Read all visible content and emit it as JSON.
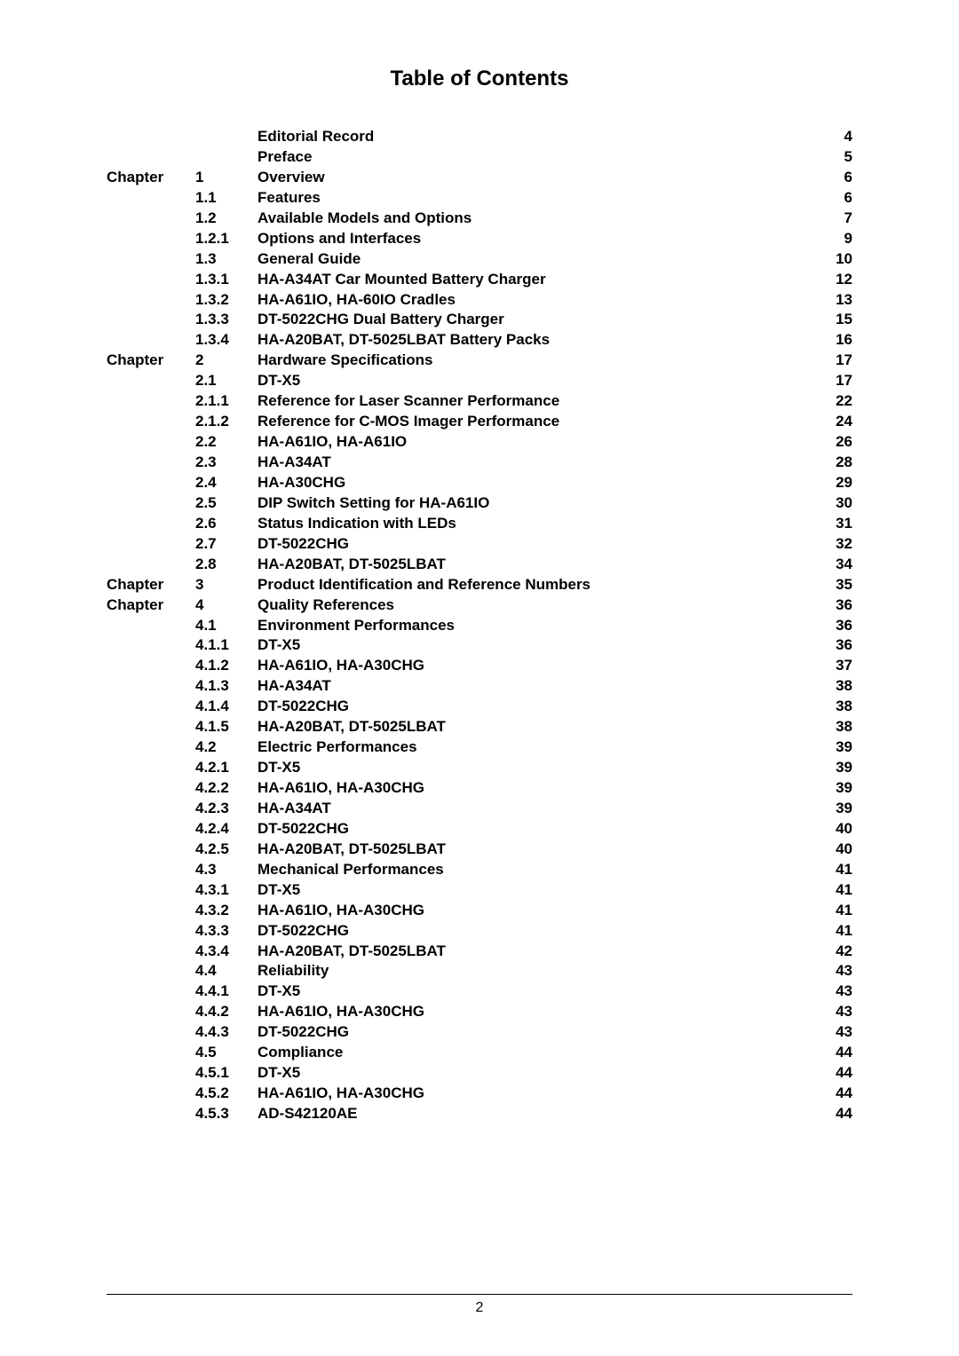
{
  "title": "Table of Contents",
  "footer_page": "2",
  "toc": [
    {
      "chapter": "",
      "num": "",
      "title": "Editorial Record",
      "page": "4"
    },
    {
      "chapter": "",
      "num": "",
      "title": "Preface",
      "page": "5"
    },
    {
      "chapter": "Chapter",
      "num": "1",
      "title": "Overview",
      "page": "6"
    },
    {
      "chapter": "",
      "num": "1.1",
      "title": "Features",
      "page": "6"
    },
    {
      "chapter": "",
      "num": "1.2",
      "title": "Available Models and Options",
      "page": "7"
    },
    {
      "chapter": "",
      "num": "1.2.1",
      "title": "Options and Interfaces",
      "page": "9"
    },
    {
      "chapter": "",
      "num": "1.3",
      "title": "General Guide",
      "page": "10"
    },
    {
      "chapter": "",
      "num": "1.3.1",
      "title": "HA-A34AT Car Mounted Battery Charger",
      "page": "12"
    },
    {
      "chapter": "",
      "num": "1.3.2",
      "title": "HA-A61IO, HA-60IO Cradles",
      "page": "13"
    },
    {
      "chapter": "",
      "num": "1.3.3",
      "title": "DT-5022CHG Dual Battery Charger",
      "page": "15"
    },
    {
      "chapter": "",
      "num": "1.3.4",
      "title": "HA-A20BAT, DT-5025LBAT Battery Packs",
      "page": "16"
    },
    {
      "chapter": "Chapter",
      "num": "2",
      "title": "Hardware Specifications",
      "page": "17"
    },
    {
      "chapter": "",
      "num": "2.1",
      "title": "DT-X5",
      "page": "17"
    },
    {
      "chapter": "",
      "num": "2.1.1",
      "title": "Reference for Laser Scanner Performance",
      "page": "22"
    },
    {
      "chapter": "",
      "num": "2.1.2",
      "title": "Reference for C-MOS Imager Performance",
      "page": "24"
    },
    {
      "chapter": "",
      "num": "2.2",
      "title": "HA-A61IO, HA-A61IO",
      "page": "26"
    },
    {
      "chapter": "",
      "num": "2.3",
      "title": "HA-A34AT",
      "page": "28"
    },
    {
      "chapter": "",
      "num": "2.4",
      "title": "HA-A30CHG",
      "page": "29"
    },
    {
      "chapter": "",
      "num": "2.5",
      "title": "DIP Switch Setting for HA-A61IO",
      "page": "30"
    },
    {
      "chapter": "",
      "num": "2.6",
      "title": "Status Indication with LEDs",
      "page": "31"
    },
    {
      "chapter": "",
      "num": "2.7",
      "title": "DT-5022CHG",
      "page": "32"
    },
    {
      "chapter": "",
      "num": "2.8",
      "title": "HA-A20BAT, DT-5025LBAT",
      "page": "34"
    },
    {
      "chapter": "Chapter",
      "num": "3",
      "title": "Product Identification and Reference Numbers",
      "page": "35"
    },
    {
      "chapter": "Chapter",
      "num": "4",
      "title": "Quality References",
      "page": "36"
    },
    {
      "chapter": "",
      "num": "4.1",
      "title": "Environment Performances",
      "page": "36"
    },
    {
      "chapter": "",
      "num": "4.1.1",
      "title": "DT-X5",
      "page": "36"
    },
    {
      "chapter": "",
      "num": "4.1.2",
      "title": "HA-A61IO, HA-A30CHG",
      "page": "37"
    },
    {
      "chapter": "",
      "num": "4.1.3",
      "title": "HA-A34AT",
      "page": "38"
    },
    {
      "chapter": "",
      "num": "4.1.4",
      "title": "DT-5022CHG",
      "page": "38"
    },
    {
      "chapter": "",
      "num": "4.1.5",
      "title": "HA-A20BAT, DT-5025LBAT",
      "page": "38"
    },
    {
      "chapter": "",
      "num": "4.2",
      "title": "Electric Performances",
      "page": "39"
    },
    {
      "chapter": "",
      "num": "4.2.1",
      "title": "DT-X5",
      "page": "39"
    },
    {
      "chapter": "",
      "num": "4.2.2",
      "title": "HA-A61IO, HA-A30CHG",
      "page": "39"
    },
    {
      "chapter": "",
      "num": "4.2.3",
      "title": "HA-A34AT",
      "page": "39"
    },
    {
      "chapter": "",
      "num": "4.2.4",
      "title": "DT-5022CHG",
      "page": "40"
    },
    {
      "chapter": "",
      "num": "4.2.5",
      "title": "HA-A20BAT, DT-5025LBAT",
      "page": "40"
    },
    {
      "chapter": "",
      "num": "4.3",
      "title": "Mechanical Performances",
      "page": "41"
    },
    {
      "chapter": "",
      "num": "4.3.1",
      "title": "DT-X5",
      "page": "41"
    },
    {
      "chapter": "",
      "num": "4.3.2",
      "title": "HA-A61IO, HA-A30CHG",
      "page": "41"
    },
    {
      "chapter": "",
      "num": "4.3.3",
      "title": "DT-5022CHG",
      "page": "41"
    },
    {
      "chapter": "",
      "num": "4.3.4",
      "title": "HA-A20BAT, DT-5025LBAT",
      "page": "42"
    },
    {
      "chapter": "",
      "num": "4.4",
      "title": "Reliability",
      "page": "43"
    },
    {
      "chapter": "",
      "num": "4.4.1",
      "title": "DT-X5",
      "page": "43"
    },
    {
      "chapter": "",
      "num": "4.4.2",
      "title": "HA-A61IO, HA-A30CHG",
      "page": "43"
    },
    {
      "chapter": "",
      "num": "4.4.3",
      "title": "DT-5022CHG",
      "page": "43"
    },
    {
      "chapter": "",
      "num": "4.5",
      "title": "Compliance",
      "page": "44"
    },
    {
      "chapter": "",
      "num": "4.5.1",
      "title": "DT-X5",
      "page": "44"
    },
    {
      "chapter": "",
      "num": "4.5.2",
      "title": "HA-A61IO, HA-A30CHG",
      "page": "44"
    },
    {
      "chapter": "",
      "num": "4.5.3",
      "title": "AD-S42120AE",
      "page": "44"
    }
  ]
}
